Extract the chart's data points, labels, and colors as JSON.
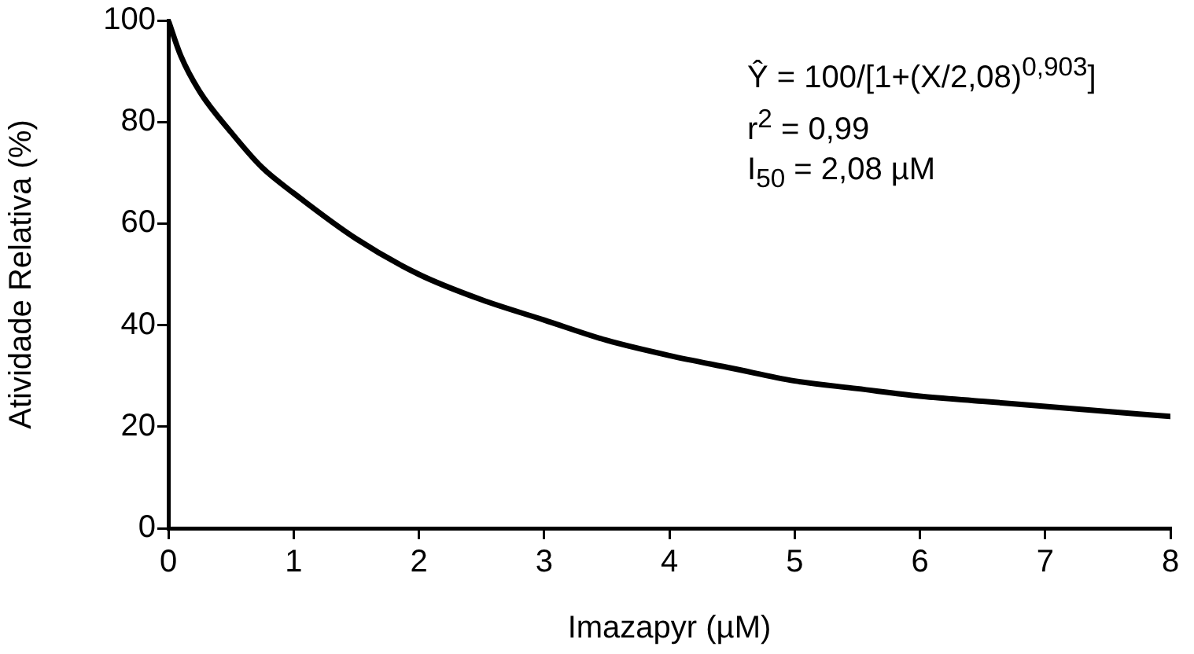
{
  "chart_data": {
    "type": "line",
    "xlabel": "Imazapyr (µM)",
    "ylabel": "Atividade Relativa (%)",
    "x": [
      0,
      0.1,
      0.25,
      0.5,
      0.75,
      1,
      1.5,
      2,
      2.5,
      3,
      3.5,
      4,
      4.5,
      5,
      5.5,
      6,
      6.5,
      7,
      7.5,
      8
    ],
    "series": [
      {
        "color": "#000000",
        "values": [
          100,
          93,
          86,
          78,
          71,
          66,
          57,
          50,
          45,
          41,
          37,
          34,
          31.5,
          29,
          27.5,
          26,
          25,
          24,
          23,
          22
        ]
      }
    ],
    "xlim": [
      0,
      8
    ],
    "xticks": [
      0,
      1,
      2,
      3,
      4,
      5,
      6,
      7,
      8
    ],
    "ylim": [
      0,
      100
    ],
    "yticks": [
      0,
      20,
      40,
      60,
      80,
      100
    ],
    "annotations": [
      "Ŷ = 100/[1+(X/2,08)$^{0,903}$]",
      "r$^{2}$ = 0,99",
      "I$_{50}$ = 2,08 µM"
    ],
    "grid": false,
    "legend": false,
    "marker": "none",
    "line_style": "solid"
  }
}
